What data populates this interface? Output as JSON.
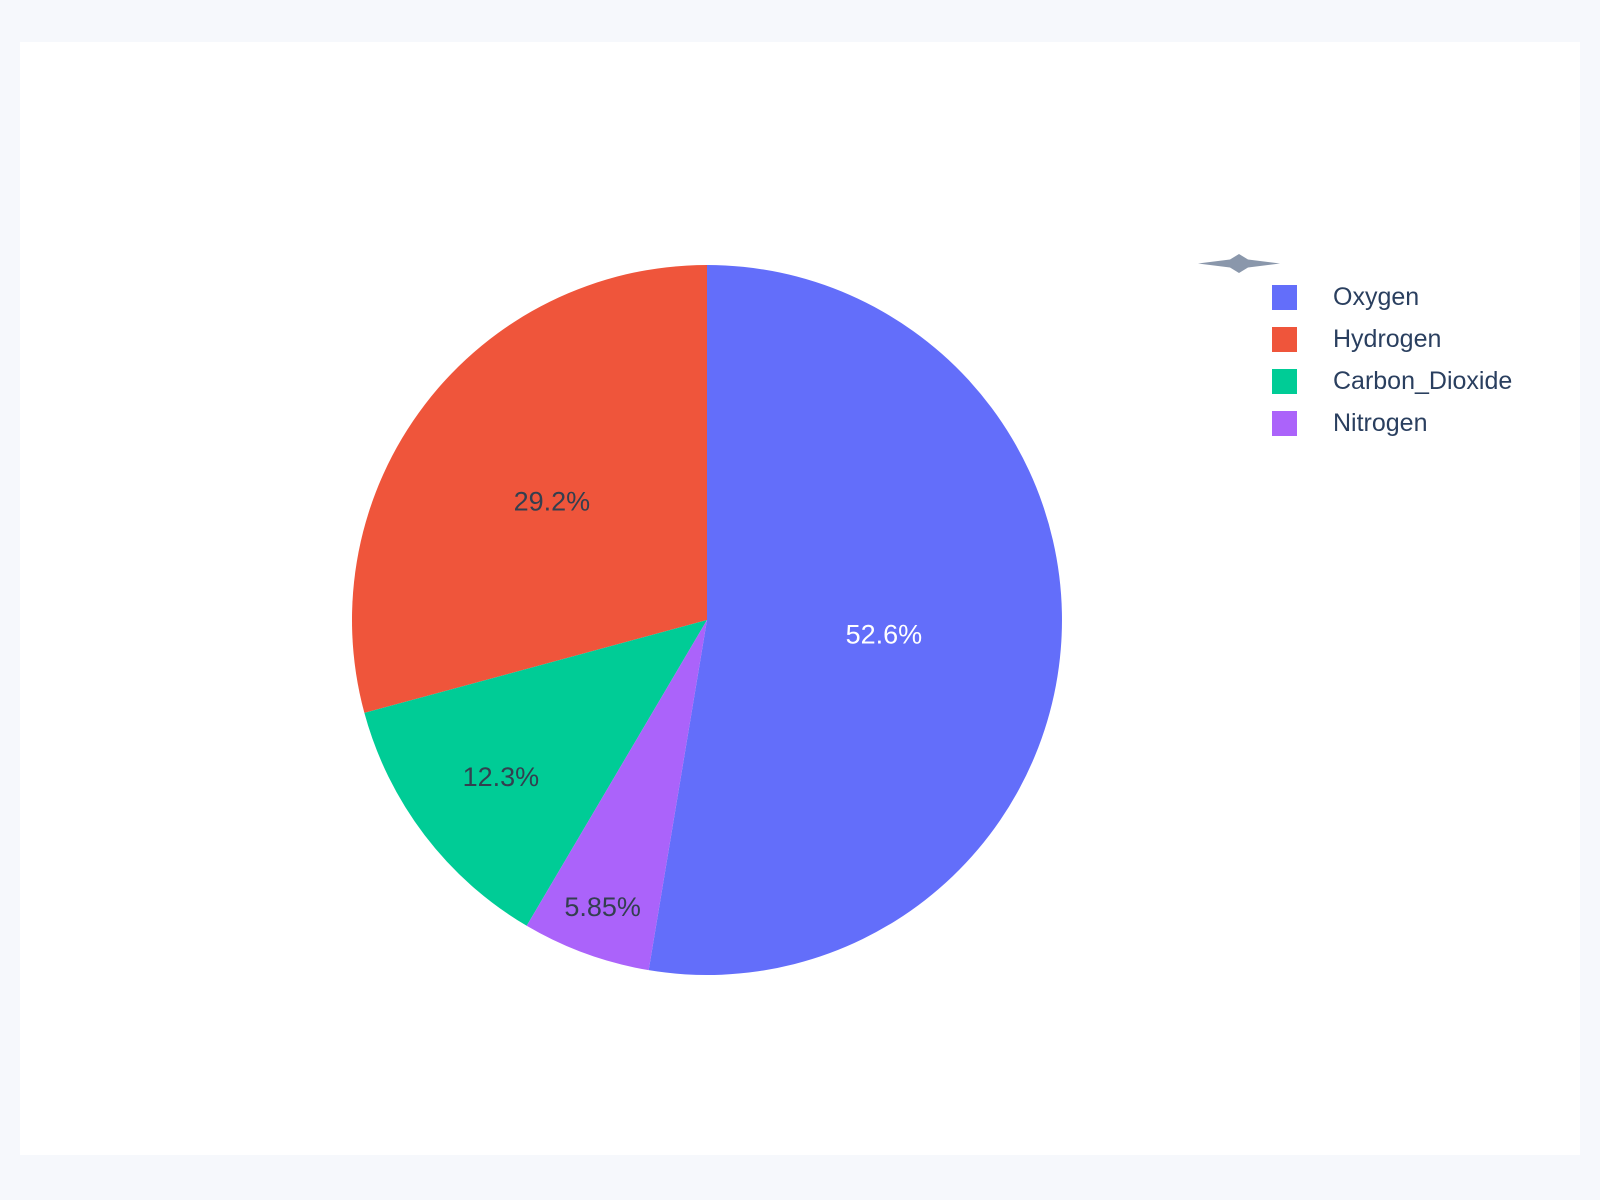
{
  "window": {
    "background_color": "#f6f8fc",
    "card_background_color": "#ffffff"
  },
  "chart_data": {
    "type": "pie",
    "title": "",
    "labels": [
      "Oxygen",
      "Hydrogen",
      "Carbon_Dioxide",
      "Nitrogen"
    ],
    "values": [
      52.6,
      29.2,
      12.3,
      5.85
    ],
    "slice_labels": [
      "52.6%",
      "29.2%",
      "12.3%",
      "5.85%"
    ],
    "colors": [
      "#636efa",
      "#ef553b",
      "#00cc96",
      "#ab63fa"
    ],
    "slice_label_colors": [
      "#ffffff",
      "#333f4f",
      "#333f4f",
      "#333f4f"
    ],
    "label_radius_fractions": [
      0.5,
      0.55,
      0.73,
      0.86
    ],
    "rotation_start": "top",
    "first_slice_direction": "clockwise",
    "other_slices_direction": "counterclockwise",
    "legend_position": "right",
    "legend_text_color": "#2a3f5f"
  },
  "icons": {
    "four_pointed_star_color": "#8a97ab"
  }
}
